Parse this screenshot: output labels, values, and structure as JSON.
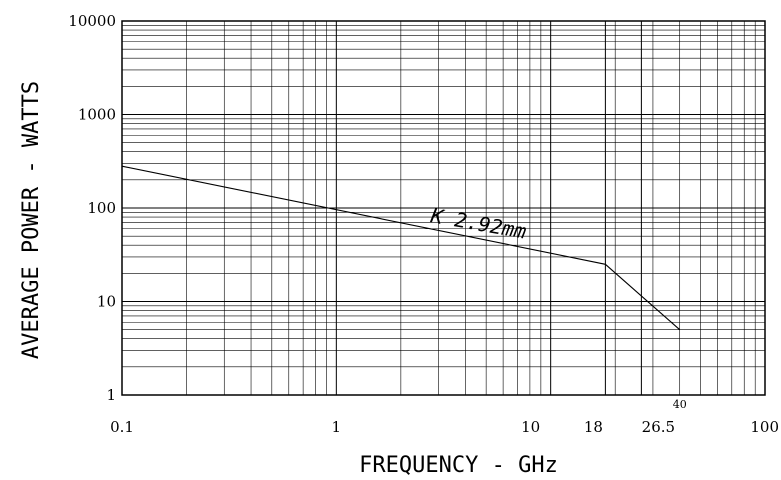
{
  "chart_data": {
    "type": "line",
    "xlabel": "FREQUENCY  -  GHz",
    "ylabel": "AVERAGE POWER  -  WATTS",
    "xscale": "log",
    "yscale": "log",
    "xlim": [
      0.1,
      100
    ],
    "ylim": [
      1,
      10000
    ],
    "grid": true,
    "x_ticks": [
      {
        "label": "0.1",
        "value": 0.1
      },
      {
        "label": "1",
        "value": 1
      },
      {
        "label": "10",
        "value": 10
      },
      {
        "label": "18",
        "value": 18
      },
      {
        "label": "26.5",
        "value": 26.5
      },
      {
        "label": "40",
        "value": 40
      },
      {
        "label": "100",
        "value": 100
      }
    ],
    "y_ticks": [
      {
        "label": "10000",
        "value": 10000
      },
      {
        "label": "1000",
        "value": 1000
      },
      {
        "label": "100",
        "value": 100
      },
      {
        "label": "10",
        "value": 10
      },
      {
        "label": "1",
        "value": 1
      }
    ],
    "emphasized_x": [
      18,
      26.5
    ],
    "series": [
      {
        "name": "K 2.92mm",
        "x": [
          0.1,
          18,
          40
        ],
        "y": [
          280,
          25,
          5
        ]
      }
    ]
  }
}
